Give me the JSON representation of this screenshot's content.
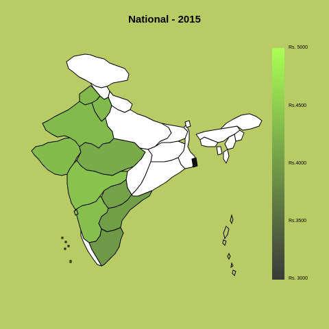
{
  "title": "National - 2015",
  "legend": {
    "ticks": [
      "Rs. 5000",
      "Rs.4500",
      "Rs.4000",
      "Rs.3500",
      "Rs. 3000"
    ],
    "min": 3000,
    "max": 5000,
    "color_low": "#3a3a3a",
    "color_high": "#aaff55"
  },
  "colors": {
    "background": "#b9cb65",
    "no_data": "#ffffff",
    "outline": "#000000"
  },
  "regions": [
    {
      "id": "jammu-kashmir",
      "value": null
    },
    {
      "id": "himachal-pradesh",
      "value": null
    },
    {
      "id": "punjab",
      "value": 4280
    },
    {
      "id": "uttarakhand",
      "value": null
    },
    {
      "id": "haryana",
      "value": 4290
    },
    {
      "id": "rajasthan",
      "value": 4300
    },
    {
      "id": "uttar-pradesh",
      "value": null
    },
    {
      "id": "bihar",
      "value": null
    },
    {
      "id": "gujarat",
      "value": 4320
    },
    {
      "id": "madhya-pradesh",
      "value": 4150
    },
    {
      "id": "chhattisgarh",
      "value": null
    },
    {
      "id": "jharkhand",
      "value": null
    },
    {
      "id": "west-bengal",
      "value": null
    },
    {
      "id": "odisha",
      "value": null
    },
    {
      "id": "maharashtra",
      "value": 4400
    },
    {
      "id": "telangana",
      "value": 4050
    },
    {
      "id": "andhra-pradesh",
      "value": 4020
    },
    {
      "id": "karnataka",
      "value": 4350
    },
    {
      "id": "goa",
      "value": 4350
    },
    {
      "id": "kerala",
      "value": null
    },
    {
      "id": "tamil-nadu",
      "value": 3950
    },
    {
      "id": "sikkim",
      "value": null
    },
    {
      "id": "assam",
      "value": null
    },
    {
      "id": "arunachal-pradesh",
      "value": null
    },
    {
      "id": "meghalaya",
      "value": null
    },
    {
      "id": "nagaland",
      "value": null
    },
    {
      "id": "manipur",
      "value": null
    },
    {
      "id": "mizoram",
      "value": null
    },
    {
      "id": "tripura",
      "value": null
    }
  ]
}
